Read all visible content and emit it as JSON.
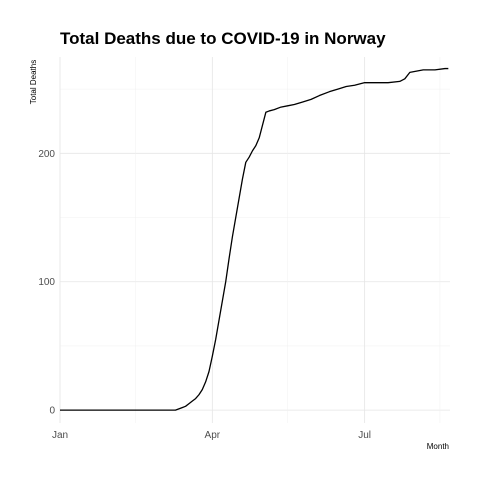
{
  "chart_data": {
    "type": "line",
    "title": "Total Deaths due to COVID-19 in Norway",
    "xlabel": "Month",
    "ylabel": "Total Deaths",
    "x_ticks": [
      "Jan",
      "Apr",
      "Jul"
    ],
    "y_ticks": [
      0,
      100,
      200
    ],
    "xlim": [
      "2020-01-01",
      "2020-08-21"
    ],
    "ylim": [
      -10,
      275
    ],
    "grid": true,
    "legend": "none",
    "line_color": "#000000",
    "series": [
      {
        "x": [
          "2020-01-01",
          "2020-03-10",
          "2020-03-12",
          "2020-03-14",
          "2020-03-16",
          "2020-03-18",
          "2020-03-20",
          "2020-03-22",
          "2020-03-24",
          "2020-03-26",
          "2020-03-28",
          "2020-03-30",
          "2020-04-01",
          "2020-04-03",
          "2020-04-05",
          "2020-04-07",
          "2020-04-09",
          "2020-04-11",
          "2020-04-13",
          "2020-04-15",
          "2020-04-17",
          "2020-04-19",
          "2020-04-21",
          "2020-04-23",
          "2020-04-25",
          "2020-04-27",
          "2020-04-29",
          "2020-05-01",
          "2020-05-03",
          "2020-05-05",
          "2020-05-08",
          "2020-05-12",
          "2020-05-16",
          "2020-05-20",
          "2020-05-25",
          "2020-05-30",
          "2020-06-04",
          "2020-06-10",
          "2020-06-15",
          "2020-06-20",
          "2020-06-25",
          "2020-07-01",
          "2020-07-08",
          "2020-07-15",
          "2020-07-22",
          "2020-07-25",
          "2020-07-28",
          "2020-08-05",
          "2020-08-12",
          "2020-08-18",
          "2020-08-20"
        ],
        "y": [
          0,
          0,
          1,
          2,
          3,
          5,
          7,
          9,
          12,
          16,
          22,
          30,
          42,
          55,
          70,
          85,
          100,
          118,
          135,
          150,
          165,
          180,
          193,
          197,
          202,
          206,
          212,
          222,
          232,
          233,
          234,
          236,
          237,
          238,
          240,
          242,
          245,
          248,
          250,
          252,
          253,
          255,
          255,
          255,
          256,
          258,
          263,
          265,
          265,
          266,
          266
        ]
      }
    ]
  }
}
